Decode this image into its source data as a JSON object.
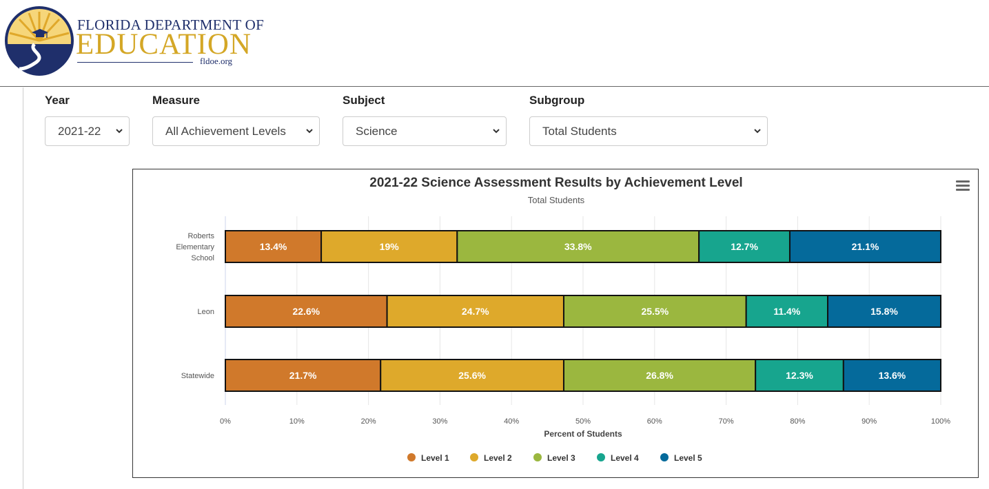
{
  "header": {
    "logo_line1": "FLORIDA DEPARTMENT OF",
    "logo_line2": "EDUCATION",
    "logo_url": "fldoe.org"
  },
  "filters": {
    "year": {
      "label": "Year",
      "value": "2021-22"
    },
    "measure": {
      "label": "Measure",
      "value": "All Achievement Levels"
    },
    "subject": {
      "label": "Subject",
      "value": "Science"
    },
    "subgroup": {
      "label": "Subgroup",
      "value": "Total Students"
    }
  },
  "colors": {
    "level1": "#d0792b",
    "level2": "#dea92b",
    "level3": "#9bb73f",
    "level4": "#17a58e",
    "level5": "#056a9b"
  },
  "chart_data": {
    "type": "bar",
    "orientation": "horizontal",
    "stacking": "percent",
    "title": "2021-22 Science Assessment Results by Achievement Level",
    "subtitle": "Total Students",
    "categories": [
      "Roberts Elementary School",
      "Leon",
      "Statewide"
    ],
    "series": [
      {
        "name": "Level 1",
        "values": [
          13.4,
          22.6,
          21.7
        ],
        "labels": [
          "13.4%",
          "22.6%",
          "21.7%"
        ]
      },
      {
        "name": "Level 2",
        "values": [
          19,
          24.7,
          25.6
        ],
        "labels": [
          "19%",
          "24.7%",
          "25.6%"
        ]
      },
      {
        "name": "Level 3",
        "values": [
          33.8,
          25.5,
          26.8
        ],
        "labels": [
          "33.8%",
          "25.5%",
          "26.8%"
        ]
      },
      {
        "name": "Level 4",
        "values": [
          12.7,
          11.4,
          12.3
        ],
        "labels": [
          "12.7%",
          "11.4%",
          "12.3%"
        ]
      },
      {
        "name": "Level 5",
        "values": [
          21.1,
          15.8,
          13.6
        ],
        "labels": [
          "21.1%",
          "15.8%",
          "13.6%"
        ]
      }
    ],
    "xlabel": "Percent of Students",
    "ylabel": "",
    "xlim": [
      0,
      100
    ],
    "xticks": [
      "0%",
      "10%",
      "20%",
      "30%",
      "40%",
      "50%",
      "60%",
      "70%",
      "80%",
      "90%",
      "100%"
    ],
    "grid": true,
    "legend": "bottom-center"
  }
}
